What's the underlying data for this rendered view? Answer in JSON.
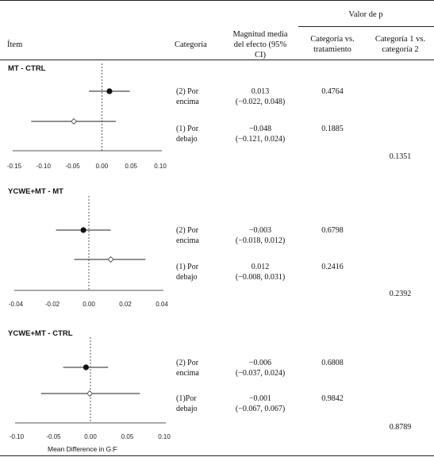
{
  "header": {
    "pvalue_group": "Valor de p",
    "item": "Ítem",
    "category": "Categoría",
    "effect_line1": "Magnitud media",
    "effect_line2": "del efecto (95%",
    "effect_line3": "CI)",
    "cat_vs_treat_line1": "Categoría vs.",
    "cat_vs_treat_line2": "tratamiento",
    "cat1_vs_cat2_line1": "Categoría 1 vs.",
    "cat1_vs_cat2_line2": "categoría 2"
  },
  "axis_label": "Mean Difference in G:F",
  "chart_data": [
    {
      "type": "scatter",
      "title": "MT - CTRL",
      "xlim": [
        -0.15,
        0.1
      ],
      "ticks": [
        "-0.15",
        "-0.10",
        "-0.05",
        "0.00",
        "0.05",
        "0.10"
      ],
      "points": [
        {
          "category_line1": "(2) Por",
          "category_line2": "encima",
          "mean": 0.013,
          "lo": -0.022,
          "hi": 0.048,
          "effect_text_line1": "0.013",
          "effect_text_line2": "(−0.022, 0.048)",
          "p_vs_treatment": "0.4764",
          "marker": "filled"
        },
        {
          "category_line1": "(1) Por",
          "category_line2": "debajo",
          "mean": -0.048,
          "lo": -0.121,
          "hi": 0.024,
          "effect_text_line1": "−0.048",
          "effect_text_line2": "(−0.121, 0.024)",
          "p_vs_treatment": "0.1885",
          "marker": "open"
        }
      ],
      "p_cat1_vs_cat2": "0.1351"
    },
    {
      "type": "scatter",
      "title": "YCWE+MT - MT",
      "xlim": [
        -0.04,
        0.04
      ],
      "ticks": [
        "-0.04",
        "-0.02",
        "0.00",
        "0.02",
        "0.04"
      ],
      "points": [
        {
          "category_line1": "(2) Por",
          "category_line2": "encima",
          "mean": -0.003,
          "lo": -0.018,
          "hi": 0.012,
          "effect_text_line1": "−0.003",
          "effect_text_line2": "(−0.018, 0.012)",
          "p_vs_treatment": "0.6798",
          "marker": "filled"
        },
        {
          "category_line1": "(1) Por",
          "category_line2": "debajo",
          "mean": 0.012,
          "lo": -0.008,
          "hi": 0.031,
          "effect_text_line1": "0.012",
          "effect_text_line2": "(−0.008, 0.031)",
          "p_vs_treatment": "0.2416",
          "marker": "open"
        }
      ],
      "p_cat1_vs_cat2": "0.2392"
    },
    {
      "type": "scatter",
      "title": "YCWE+MT - CTRL",
      "xlim": [
        -0.1,
        0.1
      ],
      "ticks": [
        "-0.10",
        "-0.05",
        "0.00",
        "0.05",
        "0.10"
      ],
      "points": [
        {
          "category_line1": "(2) Por",
          "category_line2": "encima",
          "mean": -0.006,
          "lo": -0.037,
          "hi": 0.024,
          "effect_text_line1": "−0.006",
          "effect_text_line2": "(−0.037, 0.024)",
          "p_vs_treatment": "0.6808",
          "marker": "filled"
        },
        {
          "category_line1": "(1)Por",
          "category_line2": "debajo",
          "mean": -0.001,
          "lo": -0.067,
          "hi": 0.067,
          "effect_text_line1": "−0.001",
          "effect_text_line2": "(−0.067, 0.067)",
          "p_vs_treatment": "0.9842",
          "marker": "open"
        }
      ],
      "p_cat1_vs_cat2": "0.8789"
    }
  ]
}
